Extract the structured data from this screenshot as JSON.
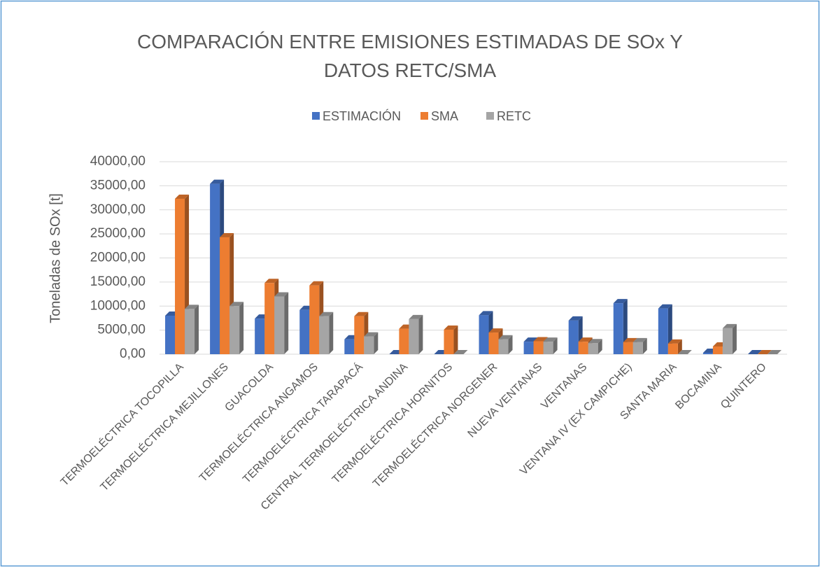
{
  "chart_data": {
    "type": "bar3d",
    "title": "COMPARACIÓN ENTRE EMISIONES ESTIMADAS DE SOx Y DATOS RETC/SMA",
    "y_label": "Toneladas de SOx [t]",
    "categories": [
      "TERMOELÉCTRICA TOCOPILLA",
      "TERMOELÉCTRICA MEJILLONES",
      "GUACOLDA",
      "TERMOELÉCTRICA ANGAMOS",
      "TERMOELÉCTRICA TARAPACÁ",
      "CENTRAL TERMOELÉCTRICA ANDINA",
      "TERMOELÉCTRICA HORNITOS",
      "TERMOELÉCTRICA NORGENER",
      "NUEVA VENTANAS",
      "VENTANAS",
      "VENTANA IV (EX CAMPICHE)",
      "SANTA MARIA",
      "BOCAMINA",
      "QUINTERO"
    ],
    "series": [
      {
        "name": "ESTIMACIÓN",
        "color": "#4472c4",
        "values": [
          8000,
          35400,
          7400,
          9200,
          3100,
          0,
          0,
          8100,
          2600,
          7000,
          10600,
          9500,
          300,
          0
        ]
      },
      {
        "name": "SMA",
        "color": "#ed7d31",
        "values": [
          32300,
          24300,
          14800,
          14300,
          7900,
          5300,
          5100,
          4500,
          2700,
          2600,
          2500,
          2200,
          1600,
          0
        ]
      },
      {
        "name": "RETC",
        "color": "#a5a5a5",
        "values": [
          9400,
          10000,
          12000,
          7900,
          3700,
          7300,
          0,
          3100,
          2600,
          2300,
          2500,
          0,
          5400,
          0
        ]
      }
    ],
    "ylim": [
      0,
      40000
    ],
    "yticks": [
      {
        "value": 0,
        "label": "0,00"
      },
      {
        "value": 5000,
        "label": "5000,00"
      },
      {
        "value": 10000,
        "label": "10000,00"
      },
      {
        "value": 15000,
        "label": "15000,00"
      },
      {
        "value": 20000,
        "label": "20000,00"
      },
      {
        "value": 25000,
        "label": "25000,00"
      },
      {
        "value": 30000,
        "label": "30000,00"
      },
      {
        "value": 35000,
        "label": "35000,00"
      },
      {
        "value": 40000,
        "label": "40000,00"
      }
    ],
    "grid": true,
    "legend": "top"
  }
}
